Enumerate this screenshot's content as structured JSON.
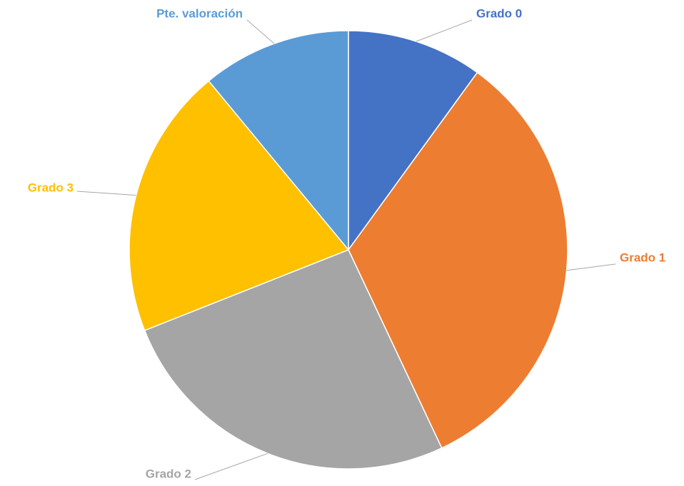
{
  "chart_data": {
    "type": "pie",
    "categories": [
      "Grado 0",
      "Grado 1",
      "Grado 2",
      "Grado 3",
      "Pte. valoración"
    ],
    "values": [
      10,
      33,
      26,
      20,
      11
    ],
    "colors": [
      "#4472c4",
      "#ed7d31",
      "#a5a5a5",
      "#ffc000",
      "#5b9bd5"
    ]
  }
}
